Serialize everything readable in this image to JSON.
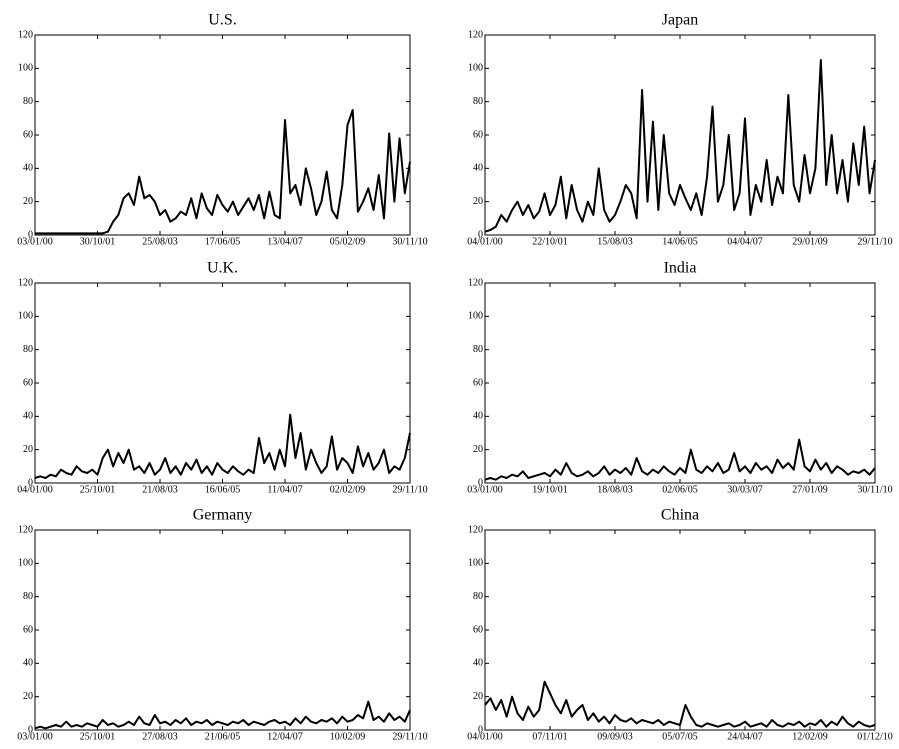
{
  "chart_data": [
    {
      "type": "line",
      "title": "U.S.",
      "color": "#000000",
      "ylim": [
        0,
        120
      ],
      "yticks": [
        0,
        20,
        40,
        60,
        80,
        100,
        120
      ],
      "categories": [
        "03/01/00",
        null,
        null,
        null,
        null,
        null,
        null,
        null,
        null,
        null,
        null,
        null,
        "30/10/01",
        null,
        null,
        null,
        null,
        null,
        null,
        null,
        null,
        null,
        null,
        null,
        "25/08/03",
        null,
        null,
        null,
        null,
        null,
        null,
        null,
        null,
        null,
        null,
        null,
        "17/06/05",
        null,
        null,
        null,
        null,
        null,
        null,
        null,
        null,
        null,
        null,
        null,
        "13/04/07",
        null,
        null,
        null,
        null,
        null,
        null,
        null,
        null,
        null,
        null,
        null,
        "05/02/09",
        null,
        null,
        null,
        null,
        null,
        null,
        null,
        null,
        null,
        null,
        null,
        "30/11/10"
      ],
      "values": [
        1,
        1,
        1,
        1,
        1,
        1,
        1,
        1,
        1,
        1,
        1,
        1,
        1,
        1,
        2,
        8,
        12,
        22,
        25,
        18,
        35,
        22,
        24,
        20,
        12,
        15,
        8,
        10,
        14,
        12,
        22,
        10,
        25,
        16,
        12,
        24,
        18,
        14,
        20,
        12,
        17,
        22,
        15,
        24,
        10,
        26,
        12,
        10,
        69,
        25,
        30,
        18,
        40,
        28,
        12,
        20,
        38,
        15,
        10,
        30,
        66,
        75,
        14,
        20,
        28,
        15,
        36,
        10,
        61,
        20,
        58,
        25,
        44
      ]
    },
    {
      "type": "line",
      "title": "Japan",
      "color": "#000000",
      "ylim": [
        0,
        120
      ],
      "yticks": [
        0,
        20,
        40,
        60,
        80,
        100,
        120
      ],
      "categories": [
        "04/01/00",
        null,
        null,
        null,
        null,
        null,
        null,
        null,
        null,
        null,
        null,
        null,
        "22/10/01",
        null,
        null,
        null,
        null,
        null,
        null,
        null,
        null,
        null,
        null,
        null,
        "15/08/03",
        null,
        null,
        null,
        null,
        null,
        null,
        null,
        null,
        null,
        null,
        null,
        "14/06/05",
        null,
        null,
        null,
        null,
        null,
        null,
        null,
        null,
        null,
        null,
        null,
        "04/04/07",
        null,
        null,
        null,
        null,
        null,
        null,
        null,
        null,
        null,
        null,
        null,
        "29/01/09",
        null,
        null,
        null,
        null,
        null,
        null,
        null,
        null,
        null,
        null,
        null,
        "29/11/10"
      ],
      "values": [
        2,
        3,
        5,
        12,
        8,
        15,
        20,
        12,
        18,
        10,
        14,
        25,
        12,
        18,
        35,
        10,
        30,
        15,
        8,
        20,
        12,
        40,
        15,
        8,
        12,
        20,
        30,
        25,
        10,
        87,
        20,
        68,
        15,
        60,
        25,
        18,
        30,
        22,
        15,
        25,
        12,
        35,
        77,
        20,
        30,
        60,
        15,
        25,
        70,
        12,
        30,
        20,
        45,
        18,
        35,
        25,
        84,
        30,
        20,
        48,
        25,
        40,
        105,
        30,
        60,
        25,
        45,
        20,
        55,
        30,
        65,
        25,
        45
      ]
    },
    {
      "type": "line",
      "title": "U.K.",
      "color": "#000000",
      "ylim": [
        0,
        120
      ],
      "yticks": [
        0,
        20,
        40,
        60,
        80,
        100,
        120
      ],
      "categories": [
        "04/01/00",
        null,
        null,
        null,
        null,
        null,
        null,
        null,
        null,
        null,
        null,
        null,
        "25/10/01",
        null,
        null,
        null,
        null,
        null,
        null,
        null,
        null,
        null,
        null,
        null,
        "21/08/03",
        null,
        null,
        null,
        null,
        null,
        null,
        null,
        null,
        null,
        null,
        null,
        "16/06/05",
        null,
        null,
        null,
        null,
        null,
        null,
        null,
        null,
        null,
        null,
        null,
        "11/04/07",
        null,
        null,
        null,
        null,
        null,
        null,
        null,
        null,
        null,
        null,
        null,
        "02/02/09",
        null,
        null,
        null,
        null,
        null,
        null,
        null,
        null,
        null,
        null,
        null,
        "29/11/10"
      ],
      "values": [
        3,
        4,
        3,
        5,
        4,
        8,
        6,
        5,
        10,
        7,
        6,
        8,
        5,
        15,
        20,
        10,
        18,
        12,
        20,
        8,
        10,
        6,
        12,
        5,
        8,
        15,
        6,
        10,
        5,
        12,
        8,
        14,
        6,
        10,
        5,
        12,
        8,
        6,
        10,
        7,
        5,
        8,
        6,
        27,
        12,
        18,
        8,
        20,
        10,
        41,
        15,
        30,
        8,
        20,
        12,
        6,
        10,
        28,
        8,
        15,
        12,
        6,
        22,
        10,
        18,
        8,
        12,
        20,
        6,
        10,
        8,
        15,
        30
      ]
    },
    {
      "type": "line",
      "title": "India",
      "color": "#000000",
      "ylim": [
        0,
        120
      ],
      "yticks": [
        0,
        20,
        40,
        60,
        80,
        100,
        120
      ],
      "categories": [
        "03/01/00",
        null,
        null,
        null,
        null,
        null,
        null,
        null,
        null,
        null,
        null,
        null,
        "19/10/01",
        null,
        null,
        null,
        null,
        null,
        null,
        null,
        null,
        null,
        null,
        null,
        "18/08/03",
        null,
        null,
        null,
        null,
        null,
        null,
        null,
        null,
        null,
        null,
        null,
        "02/06/05",
        null,
        null,
        null,
        null,
        null,
        null,
        null,
        null,
        null,
        null,
        null,
        "30/03/07",
        null,
        null,
        null,
        null,
        null,
        null,
        null,
        null,
        null,
        null,
        null,
        "27/01/09",
        null,
        null,
        null,
        null,
        null,
        null,
        null,
        null,
        null,
        null,
        null,
        "30/11/10"
      ],
      "values": [
        2,
        3,
        2,
        4,
        3,
        5,
        4,
        7,
        3,
        4,
        5,
        6,
        4,
        8,
        5,
        12,
        6,
        4,
        5,
        7,
        4,
        6,
        10,
        5,
        8,
        6,
        9,
        5,
        15,
        7,
        5,
        8,
        6,
        10,
        7,
        5,
        9,
        6,
        20,
        8,
        6,
        10,
        7,
        12,
        6,
        8,
        18,
        7,
        10,
        6,
        12,
        8,
        10,
        6,
        14,
        9,
        12,
        8,
        26,
        10,
        7,
        14,
        8,
        12,
        6,
        10,
        8,
        5,
        7,
        6,
        8,
        5,
        9
      ]
    },
    {
      "type": "line",
      "title": "Germany",
      "color": "#000000",
      "ylim": [
        0,
        120
      ],
      "yticks": [
        0,
        20,
        40,
        60,
        80,
        100,
        120
      ],
      "categories": [
        "03/01/00",
        null,
        null,
        null,
        null,
        null,
        null,
        null,
        null,
        null,
        null,
        null,
        "25/10/01",
        null,
        null,
        null,
        null,
        null,
        null,
        null,
        null,
        null,
        null,
        null,
        "27/08/03",
        null,
        null,
        null,
        null,
        null,
        null,
        null,
        null,
        null,
        null,
        null,
        "21/06/05",
        null,
        null,
        null,
        null,
        null,
        null,
        null,
        null,
        null,
        null,
        null,
        "12/04/07",
        null,
        null,
        null,
        null,
        null,
        null,
        null,
        null,
        null,
        null,
        null,
        "10/02/09",
        null,
        null,
        null,
        null,
        null,
        null,
        null,
        null,
        null,
        null,
        null,
        "29/11/10"
      ],
      "values": [
        1,
        2,
        1,
        2,
        3,
        2,
        5,
        2,
        3,
        2,
        4,
        3,
        2,
        6,
        3,
        4,
        2,
        3,
        5,
        3,
        8,
        4,
        3,
        9,
        4,
        5,
        3,
        6,
        4,
        7,
        3,
        5,
        4,
        6,
        3,
        5,
        4,
        3,
        5,
        4,
        6,
        3,
        5,
        4,
        3,
        5,
        6,
        4,
        5,
        3,
        7,
        4,
        8,
        5,
        4,
        6,
        5,
        7,
        4,
        8,
        5,
        6,
        9,
        7,
        17,
        6,
        8,
        5,
        10,
        6,
        8,
        5,
        12
      ]
    },
    {
      "type": "line",
      "title": "China",
      "color": "#000000",
      "ylim": [
        0,
        120
      ],
      "yticks": [
        0,
        20,
        40,
        60,
        80,
        100,
        120
      ],
      "categories": [
        "04/01/00",
        null,
        null,
        null,
        null,
        null,
        null,
        null,
        null,
        null,
        null,
        null,
        "07/11/01",
        null,
        null,
        null,
        null,
        null,
        null,
        null,
        null,
        null,
        null,
        null,
        "09/09/03",
        null,
        null,
        null,
        null,
        null,
        null,
        null,
        null,
        null,
        null,
        null,
        "05/07/05",
        null,
        null,
        null,
        null,
        null,
        null,
        null,
        null,
        null,
        null,
        null,
        "24/04/07",
        null,
        null,
        null,
        null,
        null,
        null,
        null,
        null,
        null,
        null,
        null,
        "12/02/09",
        null,
        null,
        null,
        null,
        null,
        null,
        null,
        null,
        null,
        null,
        null,
        "01/12/10"
      ],
      "values": [
        15,
        19,
        12,
        18,
        8,
        20,
        10,
        6,
        14,
        8,
        12,
        29,
        22,
        15,
        10,
        18,
        8,
        12,
        15,
        6,
        10,
        5,
        8,
        4,
        9,
        6,
        5,
        7,
        4,
        6,
        5,
        4,
        6,
        3,
        5,
        4,
        3,
        15,
        8,
        3,
        2,
        4,
        3,
        2,
        3,
        4,
        2,
        3,
        5,
        2,
        3,
        4,
        2,
        6,
        3,
        2,
        4,
        3,
        5,
        2,
        4,
        3,
        6,
        2,
        5,
        3,
        8,
        4,
        2,
        5,
        3,
        2,
        3
      ]
    }
  ]
}
